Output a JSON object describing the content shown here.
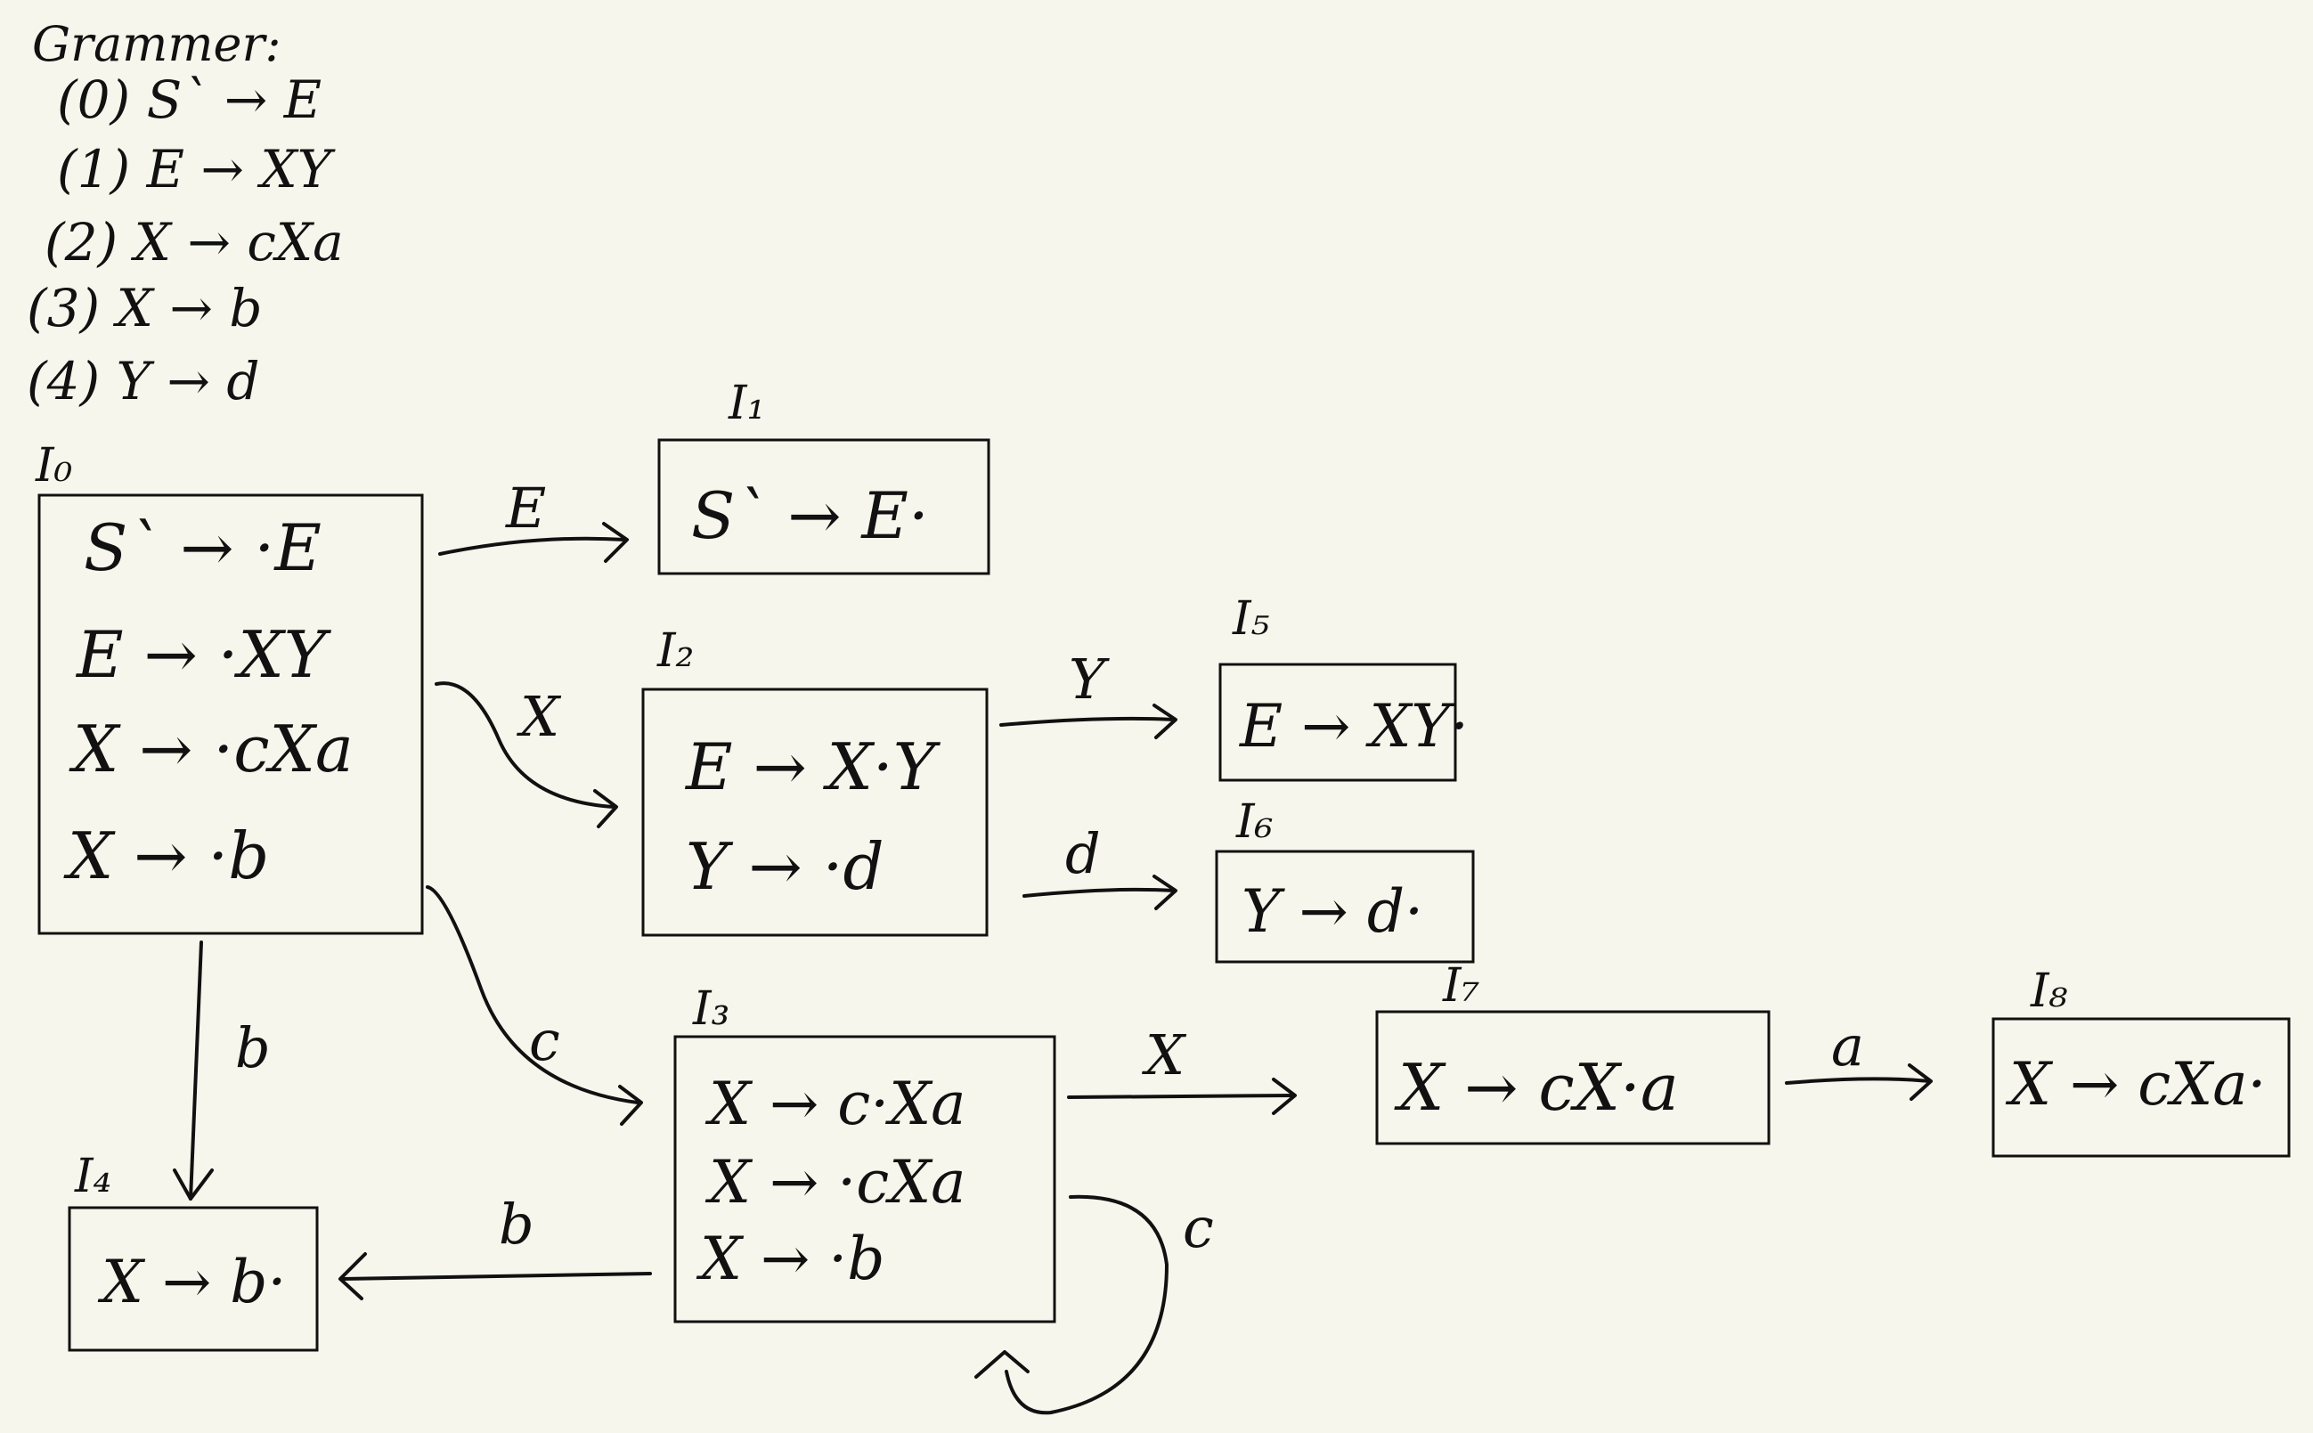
{
  "grammar": {
    "title": "Grammer:",
    "rules": [
      "(0) S` → E",
      "(1) E → XY",
      "(2) X → cXa",
      "(3) X → b",
      "(4) Y → d"
    ]
  },
  "states": {
    "I0": {
      "label": "I₀",
      "items": [
        "S` → ·E",
        "E → ·XY",
        "X → ·cXa",
        "X → ·b"
      ]
    },
    "I1": {
      "label": "I₁",
      "items": [
        "S` → E·"
      ]
    },
    "I2": {
      "label": "I₂",
      "items": [
        "E → X·Y",
        "Y → ·d"
      ]
    },
    "I3": {
      "label": "I₃",
      "items": [
        "X → c·Xa",
        "X → ·cXa",
        "X → ·b"
      ]
    },
    "I4": {
      "label": "I₄",
      "items": [
        "X → b·"
      ]
    },
    "I5": {
      "label": "I₅",
      "items": [
        "E → XY·"
      ]
    },
    "I6": {
      "label": "I₆",
      "items": [
        "Y → d·"
      ]
    },
    "I7": {
      "label": "I₇",
      "items": [
        "X → cX·a"
      ]
    },
    "I8": {
      "label": "I₈",
      "items": [
        "X → cXa·"
      ]
    }
  },
  "transitions": [
    {
      "from": "I0",
      "to": "I1",
      "symbol": "E"
    },
    {
      "from": "I0",
      "to": "I2",
      "symbol": "X"
    },
    {
      "from": "I0",
      "to": "I3",
      "symbol": "c"
    },
    {
      "from": "I0",
      "to": "I4",
      "symbol": "b"
    },
    {
      "from": "I2",
      "to": "I5",
      "symbol": "Y"
    },
    {
      "from": "I2",
      "to": "I6",
      "symbol": "d"
    },
    {
      "from": "I3",
      "to": "I7",
      "symbol": "X"
    },
    {
      "from": "I3",
      "to": "I4",
      "symbol": "b"
    },
    {
      "from": "I3",
      "to": "I3",
      "symbol": "c"
    },
    {
      "from": "I7",
      "to": "I8",
      "symbol": "a"
    }
  ]
}
